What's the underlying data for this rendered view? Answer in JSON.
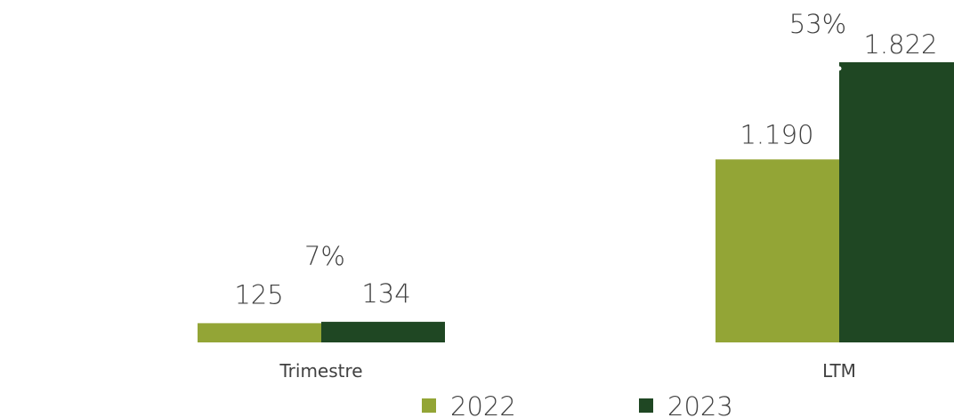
{
  "chart_data": {
    "type": "bar",
    "categories": [
      "Trimestre",
      "LTM"
    ],
    "series": [
      {
        "name": "2022",
        "values": [
          125,
          1190
        ],
        "labels": [
          "125",
          "1.190"
        ]
      },
      {
        "name": "2023",
        "values": [
          134,
          1822
        ],
        "labels": [
          "134",
          "1.822"
        ]
      }
    ],
    "growth_labels": [
      "7%",
      "53%"
    ],
    "ylim": [
      0,
      1822
    ],
    "legend": "bottom",
    "grid": false
  },
  "colors": {
    "series_2022": "#93a536",
    "series_2023": "#1f4723",
    "text": "#404040"
  }
}
